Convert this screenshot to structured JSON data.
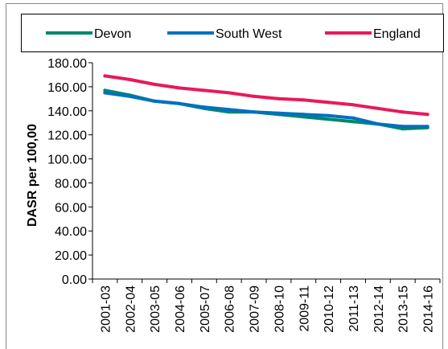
{
  "chart_data": {
    "type": "line",
    "title": "",
    "xlabel": "",
    "ylabel": "DASR per 100,00",
    "ylim": [
      0,
      180
    ],
    "yticks": [
      "0.00",
      "20.00",
      "40.00",
      "60.00",
      "80.00",
      "100.00",
      "120.00",
      "140.00",
      "160.00",
      "180.00"
    ],
    "categories": [
      "2001-03",
      "2002-04",
      "2003-05",
      "2004-06",
      "2005-07",
      "2006-08",
      "2007-09",
      "2008-10",
      "2009-11",
      "2010-12",
      "2011-13",
      "2012-14",
      "2013-15",
      "2014-16"
    ],
    "legend_position": "top",
    "grid": false,
    "series": [
      {
        "name": "Devon",
        "color": "#00876C",
        "values": [
          157,
          153,
          148,
          146,
          142,
          139,
          139,
          137,
          135,
          133,
          131,
          129,
          125,
          126
        ]
      },
      {
        "name": "South West",
        "color": "#0070C0",
        "values": [
          155,
          152,
          148,
          146,
          143,
          141,
          139,
          138,
          137,
          136,
          134,
          129,
          127,
          127
        ]
      },
      {
        "name": "England",
        "color": "#E8195A",
        "values": [
          169,
          166,
          162,
          159,
          157,
          155,
          152,
          150,
          149,
          147,
          145,
          142,
          139,
          137
        ]
      }
    ]
  }
}
